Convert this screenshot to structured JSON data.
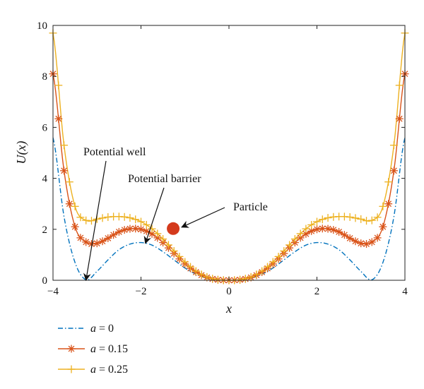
{
  "chart_data": {
    "type": "line",
    "title": "",
    "xlabel": "x",
    "ylabel": "U(x)",
    "xlim": [
      -4,
      4
    ],
    "ylim": [
      0,
      10
    ],
    "x_ticks": [
      "-4",
      "-2",
      "0",
      "2",
      "4"
    ],
    "y_ticks": [
      "0",
      "2",
      "4",
      "6",
      "8",
      "10"
    ],
    "grid": false,
    "legend_position": "bottom-left, below plot",
    "x": [
      -4.0,
      -3.75,
      -3.5,
      -3.25,
      -3.0,
      -2.75,
      -2.5,
      -2.25,
      -2.0,
      -1.75,
      -1.5,
      -1.25,
      -1.0,
      -0.75,
      -0.5,
      -0.25,
      0.0,
      0.25,
      0.5,
      0.75,
      1.0,
      1.25,
      1.5,
      1.75,
      2.0,
      2.25,
      2.5,
      2.75,
      3.0,
      3.25,
      3.5,
      3.75,
      4.0
    ],
    "series": [
      {
        "name": "a = 0",
        "color": "#0072BD",
        "style": "dash-dot",
        "marker": "none",
        "values": [
          5.6,
          2.5,
          0.7,
          0.02,
          0.35,
          0.8,
          1.2,
          1.42,
          1.48,
          1.38,
          1.12,
          0.8,
          0.48,
          0.24,
          0.08,
          0.01,
          0.0,
          0.01,
          0.08,
          0.24,
          0.48,
          0.8,
          1.12,
          1.38,
          1.48,
          1.42,
          1.2,
          0.8,
          0.35,
          0.02,
          0.7,
          2.5,
          5.6
        ]
      },
      {
        "name": "a = 0.15",
        "color": "#D95319",
        "style": "solid",
        "marker": "asterisk",
        "values": [
          8.1,
          4.3,
          2.1,
          1.5,
          1.45,
          1.65,
          1.9,
          2.02,
          2.0,
          1.82,
          1.48,
          1.05,
          0.64,
          0.32,
          0.11,
          0.02,
          0.0,
          0.02,
          0.11,
          0.32,
          0.64,
          1.05,
          1.48,
          1.82,
          2.0,
          2.02,
          1.9,
          1.65,
          1.45,
          1.5,
          2.1,
          4.3,
          8.1
        ]
      },
      {
        "name": "a = 0.25",
        "color": "#EDB120",
        "style": "solid",
        "marker": "plus",
        "values": [
          9.7,
          5.3,
          2.9,
          2.35,
          2.4,
          2.48,
          2.5,
          2.45,
          2.3,
          2.02,
          1.62,
          1.15,
          0.72,
          0.36,
          0.13,
          0.02,
          0.0,
          0.02,
          0.13,
          0.36,
          0.72,
          1.15,
          1.62,
          2.02,
          2.3,
          2.45,
          2.5,
          2.48,
          2.4,
          2.35,
          2.9,
          5.3,
          9.7
        ]
      }
    ],
    "annotations": [
      {
        "text": "Potential well",
        "arrow_to": [
          -3.25,
          0.0
        ]
      },
      {
        "text": "Potential barrier",
        "arrow_to": [
          -1.9,
          1.45
        ]
      },
      {
        "text": "Particle",
        "arrow_to": [
          -1.3,
          2.0
        ]
      }
    ],
    "particle": {
      "x": -1.3,
      "y": 2.0,
      "color": "#D43A1C"
    }
  }
}
